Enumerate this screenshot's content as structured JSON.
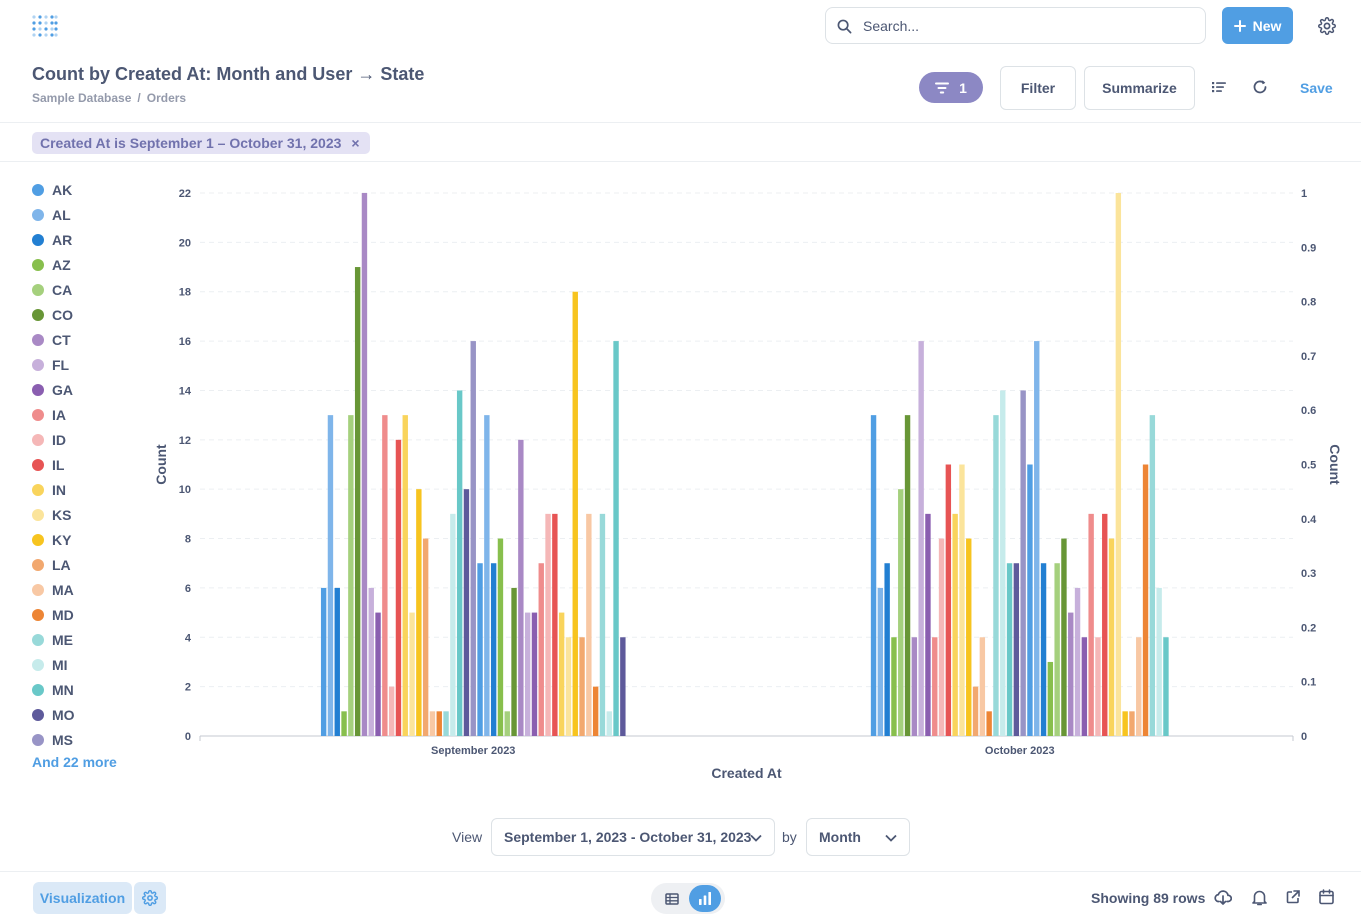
{
  "header": {
    "search_placeholder": "Search...",
    "new_label": "New"
  },
  "question": {
    "title": "Count by Created At: Month and User → State",
    "breadcrumb": [
      "Sample Database",
      "/",
      "Orders"
    ],
    "filter_count": "1",
    "filter_label": "Filter",
    "summarize_label": "Summarize",
    "save_label": "Save"
  },
  "filter_pill": {
    "text": "Created At is September 1 – October 31, 2023",
    "close": "×"
  },
  "legend": {
    "items": [
      {
        "label": "AK",
        "color": "#509EE3"
      },
      {
        "label": "AL",
        "color": "#7FB5EA"
      },
      {
        "label": "AR",
        "color": "#227FD2"
      },
      {
        "label": "AZ",
        "color": "#88BF4D"
      },
      {
        "label": "CA",
        "color": "#A5D07D"
      },
      {
        "label": "CO",
        "color": "#689636"
      },
      {
        "label": "CT",
        "color": "#A989C5"
      },
      {
        "label": "FL",
        "color": "#C7B0DB"
      },
      {
        "label": "GA",
        "color": "#8A5EB0"
      },
      {
        "label": "IA",
        "color": "#EF8C8C"
      },
      {
        "label": "ID",
        "color": "#F5B7B7"
      },
      {
        "label": "IL",
        "color": "#E75454"
      },
      {
        "label": "IN",
        "color": "#F9D45C"
      },
      {
        "label": "KS",
        "color": "#FBE49B"
      },
      {
        "label": "KY",
        "color": "#F7C41F"
      },
      {
        "label": "LA",
        "color": "#F2A86F"
      },
      {
        "label": "MA",
        "color": "#F8C8A4"
      },
      {
        "label": "MD",
        "color": "#ED8535"
      },
      {
        "label": "ME",
        "color": "#98D9D9"
      },
      {
        "label": "MI",
        "color": "#C6EBEB"
      },
      {
        "label": "MN",
        "color": "#69C8C8"
      },
      {
        "label": "MO",
        "color": "#5E5A9B"
      },
      {
        "label": "MS",
        "color": "#9894C6"
      }
    ],
    "more": "And 22 more"
  },
  "chart_data": {
    "type": "bar",
    "xlabel": "Created At",
    "ylabel": "Count",
    "y2label": "Count",
    "ylim": [
      0,
      22
    ],
    "yticks": [
      "0",
      "2",
      "4",
      "6",
      "8",
      "10",
      "12",
      "14",
      "16",
      "18",
      "20",
      "22"
    ],
    "y2lim": [
      0,
      1
    ],
    "y2ticks": [
      "0",
      "0.1",
      "0.2",
      "0.3",
      "0.4",
      "0.5",
      "0.6",
      "0.7",
      "0.8",
      "0.9",
      "1"
    ],
    "categories": [
      "September 2023",
      "October 2023"
    ],
    "series_colors": [
      "#509EE3",
      "#7FB5EA",
      "#227FD2",
      "#88BF4D",
      "#A5D07D",
      "#689636",
      "#A989C5",
      "#C7B0DB",
      "#8A5EB0",
      "#EF8C8C",
      "#F5B7B7",
      "#E75454",
      "#F9D45C",
      "#FBE49B",
      "#F7C41F",
      "#F2A86F",
      "#F8C8A4",
      "#ED8535",
      "#98D9D9",
      "#C6EBEB",
      "#69C8C8",
      "#5E5A9B",
      "#9894C6"
    ],
    "values": [
      [
        6,
        13,
        6,
        1,
        13,
        19,
        22,
        6,
        5,
        13,
        2,
        12,
        13,
        5,
        10,
        8,
        1,
        1,
        1,
        9,
        14,
        10,
        16,
        7,
        13,
        7,
        8,
        1,
        6,
        12,
        5,
        5,
        7,
        9,
        9,
        5,
        4,
        18,
        4,
        9,
        2,
        9,
        1,
        16,
        4
      ],
      [
        13,
        6,
        7,
        4,
        10,
        13,
        4,
        16,
        9,
        4,
        8,
        11,
        9,
        11,
        8,
        2,
        4,
        1,
        13,
        14,
        7,
        7,
        14,
        11,
        16,
        7,
        3,
        7,
        8,
        5,
        6,
        4,
        9,
        4,
        9,
        8,
        22,
        1,
        1,
        4,
        11,
        13,
        6,
        4
      ]
    ]
  },
  "view_bar": {
    "view_label": "View",
    "date_range": "September 1, 2023 - October 31, 2023",
    "by_label": "by",
    "granularity": "Month"
  },
  "footer": {
    "visualization_label": "Visualization",
    "rows_text": "Showing 89 rows"
  }
}
